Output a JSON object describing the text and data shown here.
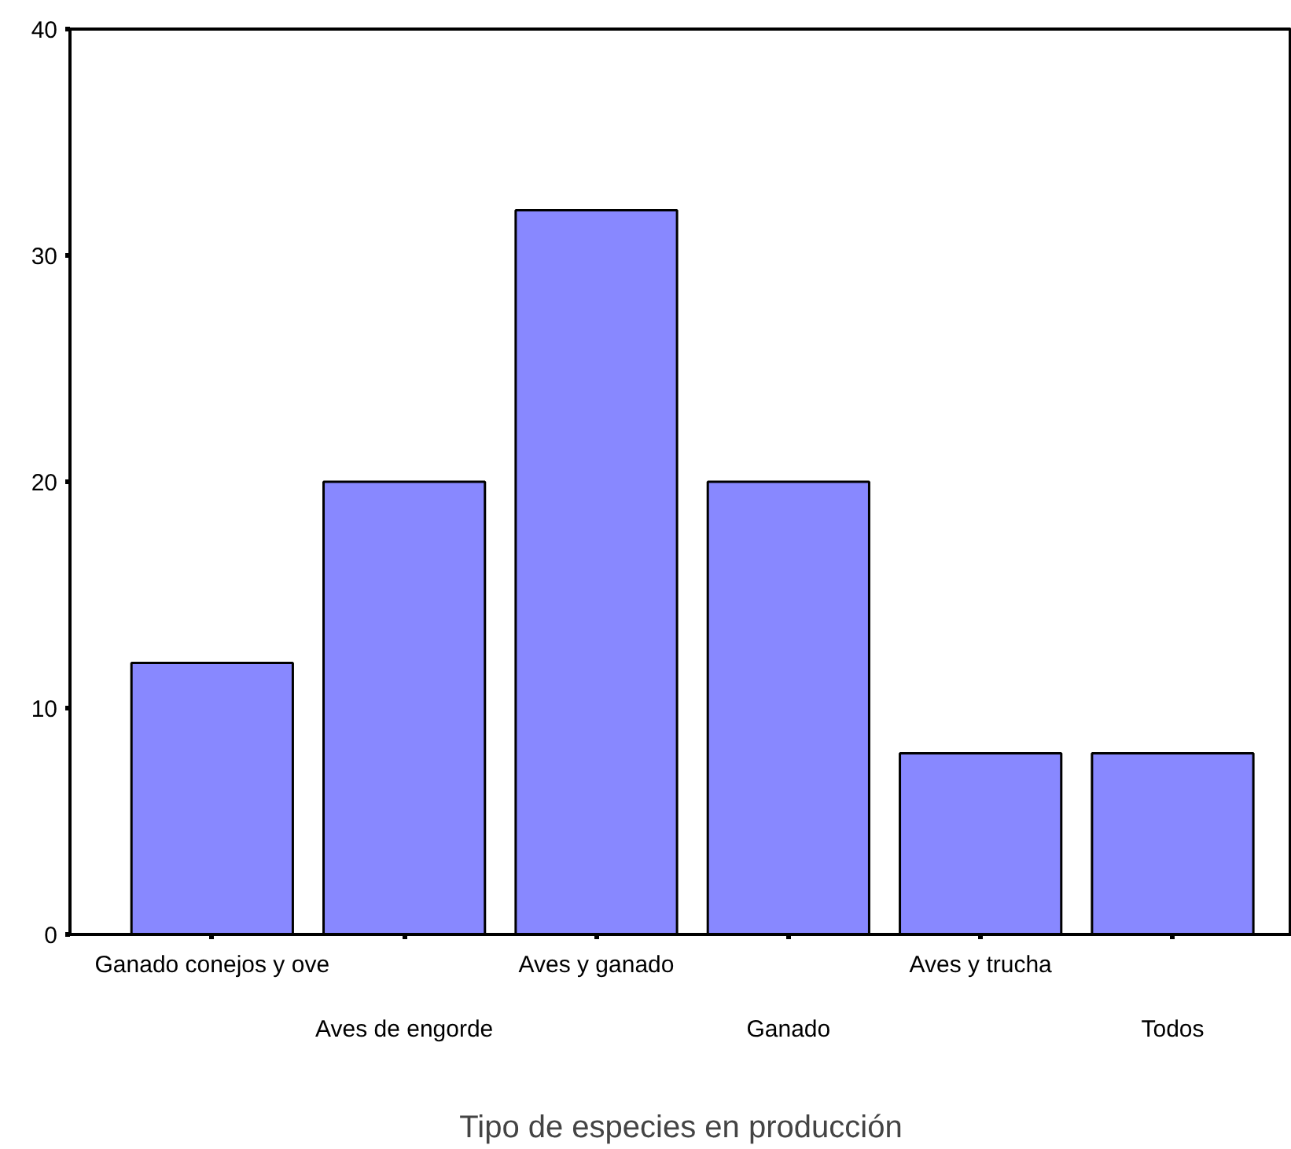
{
  "chart_data": {
    "type": "bar",
    "xlabel": "Tipo de especies en producción",
    "categories": [
      "Ganado conejos y ove",
      "Aves de engorde",
      "Aves y ganado",
      "Ganado",
      "Aves y trucha",
      "Todos"
    ],
    "values": [
      12,
      20,
      32,
      20,
      8,
      8
    ],
    "color": "#8888ff",
    "ylim": [
      0,
      40
    ],
    "yticks": [
      0,
      10,
      20,
      30,
      40
    ],
    "grid": false
  }
}
